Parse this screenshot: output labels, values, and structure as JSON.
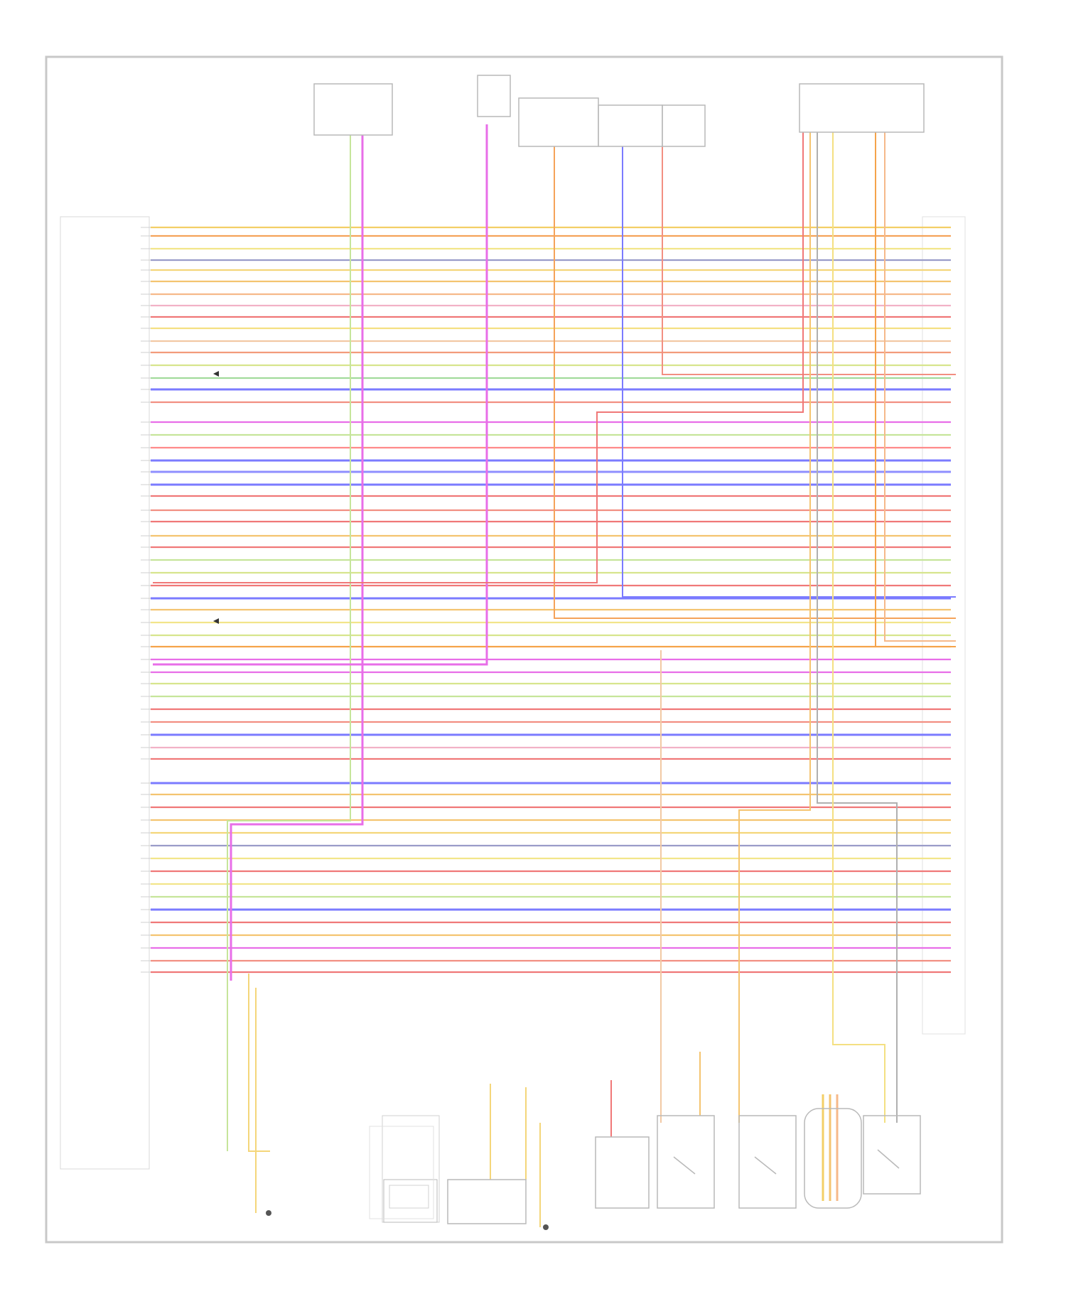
{
  "footer": {
    "code": ""
  },
  "colors": {
    "frame": "#c8c8c8",
    "box": "#b9b9b9",
    "wire_palette": [
      "#f3cf66",
      "#f5a35a",
      "#f2e58a",
      "#9a9cc9",
      "#f4d67a",
      "#f4c470",
      "#f6b98a",
      "#f2b2c6",
      "#f07878",
      "#f4e082",
      "#f2c9a4",
      "#f39b7b",
      "#d7e58d",
      "#a2db9c",
      "#7b7bff",
      "#f28f82",
      "#e86ee8",
      "#c6e59a",
      "#ff8a8a",
      "#8f8fff",
      "#f5a34a"
    ]
  },
  "connectors": {
    "left": {
      "name": "",
      "labels": [],
      "wire_labels": []
    },
    "right": {
      "wire_labels": []
    }
  },
  "components": {
    "top": [
      {
        "name": "",
        "sub": ""
      },
      {
        "name": "",
        "sub": ""
      },
      {
        "name": "",
        "sub": ""
      },
      {
        "name": "",
        "sub": ""
      },
      {
        "name": "",
        "sub": ""
      },
      {
        "name": "",
        "sub": ""
      }
    ],
    "bottom": [
      {
        "name": ""
      },
      {
        "name": ""
      },
      {
        "name": ""
      },
      {
        "name": ""
      },
      {
        "name": ""
      },
      {
        "name": ""
      },
      {
        "name": ""
      }
    ],
    "notes": [
      "",
      ""
    ],
    "grounds": [
      "",
      ""
    ]
  }
}
